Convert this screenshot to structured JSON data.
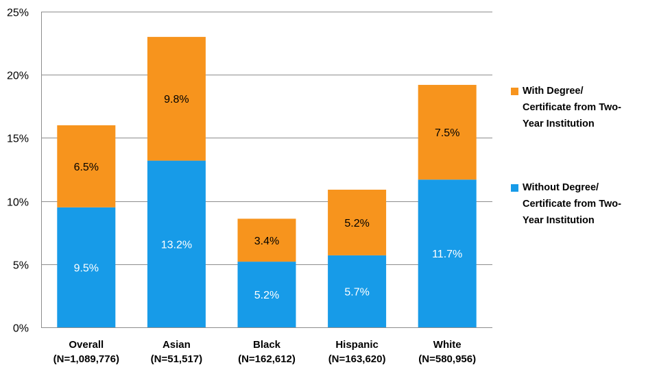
{
  "chart_data": {
    "type": "bar",
    "stacked": true,
    "title": "",
    "xlabel": "",
    "ylabel": "",
    "ylim": [
      0,
      25
    ],
    "yticks": [
      "0%",
      "5%",
      "10%",
      "15%",
      "20%",
      "25%"
    ],
    "ytick_values": [
      0,
      5,
      10,
      15,
      20,
      25
    ],
    "grid": true,
    "legend_position": "right",
    "categories": [
      {
        "name": "Overall",
        "n": "(N=1,089,776)"
      },
      {
        "name": "Asian",
        "n": "(N=51,517)"
      },
      {
        "name": "Black",
        "n": "(N=162,612)"
      },
      {
        "name": "Hispanic",
        "n": "(N=163,620)"
      },
      {
        "name": "White",
        "n": "(N=580,956)"
      }
    ],
    "series": [
      {
        "name": "Without Degree/ Certificate from Two-Year Institution",
        "legend_lines": [
          "Without Degree/",
          "Certificate from Two-",
          "Year Institution"
        ],
        "color": "#179be8",
        "label_color": "#ffffff",
        "values": [
          9.5,
          13.2,
          5.2,
          5.7,
          11.7
        ],
        "labels": [
          "9.5%",
          "13.2%",
          "5.2%",
          "5.7%",
          "11.7%"
        ]
      },
      {
        "name": "With Degree/ Certificate from Two-Year Institution",
        "legend_lines": [
          "With Degree/",
          "Certificate from Two-",
          "Year Institution"
        ],
        "color": "#f7941d",
        "label_color": "#000000",
        "values": [
          6.5,
          9.8,
          3.4,
          5.2,
          7.5
        ],
        "labels": [
          "6.5%",
          "9.8%",
          "3.4%",
          "5.2%",
          "7.5%"
        ]
      }
    ]
  }
}
